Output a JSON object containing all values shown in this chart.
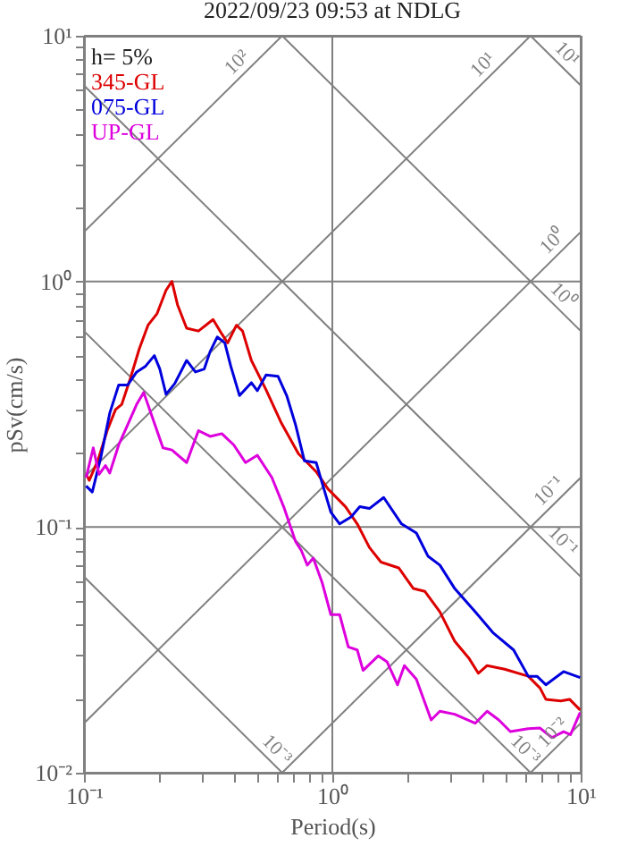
{
  "chart_data": {
    "type": "line",
    "title": "2022/09/23 09:53 at NDLG",
    "xlabel": "Period(s)",
    "ylabel": "pSv(cm/s)",
    "log": "xy",
    "grid": true,
    "legend": "top left",
    "marker": "none",
    "line_style": "solid",
    "xlim": [
      0.1,
      10
    ],
    "ylim": [
      0.01,
      10
    ],
    "xticks": [
      {
        "value": 0.1,
        "label": "10⁻¹"
      },
      {
        "value": 0.2,
        "label": null
      },
      {
        "value": 0.3,
        "label": null
      },
      {
        "value": 0.4,
        "label": null
      },
      {
        "value": 0.5,
        "label": null
      },
      {
        "value": 0.6,
        "label": null
      },
      {
        "value": 0.7,
        "label": null
      },
      {
        "value": 0.8,
        "label": null
      },
      {
        "value": 0.9,
        "label": null
      },
      {
        "value": 1,
        "label": "10⁰"
      },
      {
        "value": 2,
        "label": null
      },
      {
        "value": 3,
        "label": null
      },
      {
        "value": 4,
        "label": null
      },
      {
        "value": 5,
        "label": null
      },
      {
        "value": 6,
        "label": null
      },
      {
        "value": 7,
        "label": null
      },
      {
        "value": 8,
        "label": null
      },
      {
        "value": 9,
        "label": null
      },
      {
        "value": 10,
        "label": "10¹"
      }
    ],
    "yticks": [
      {
        "value": 0.01,
        "label": "10⁻²"
      },
      {
        "value": 0.02,
        "label": null
      },
      {
        "value": 0.03,
        "label": null
      },
      {
        "value": 0.04,
        "label": null
      },
      {
        "value": 0.05,
        "label": null
      },
      {
        "value": 0.06,
        "label": null
      },
      {
        "value": 0.07,
        "label": null
      },
      {
        "value": 0.08,
        "label": null
      },
      {
        "value": 0.09,
        "label": null
      },
      {
        "value": 0.1,
        "label": "10⁻¹"
      },
      {
        "value": 0.2,
        "label": null
      },
      {
        "value": 0.3,
        "label": null
      },
      {
        "value": 0.4,
        "label": null
      },
      {
        "value": 0.5,
        "label": null
      },
      {
        "value": 0.6,
        "label": null
      },
      {
        "value": 0.7,
        "label": null
      },
      {
        "value": 0.8,
        "label": null
      },
      {
        "value": 0.9,
        "label": null
      },
      {
        "value": 1,
        "label": "10⁰"
      },
      {
        "value": 2,
        "label": null
      },
      {
        "value": 3,
        "label": null
      },
      {
        "value": 4,
        "label": null
      },
      {
        "value": 5,
        "label": null
      },
      {
        "value": 6,
        "label": null
      },
      {
        "value": 7,
        "label": null
      },
      {
        "value": 8,
        "label": null
      },
      {
        "value": 9,
        "label": null
      },
      {
        "value": 10,
        "label": "10¹"
      }
    ],
    "annotations": [
      "h= 5%",
      {
        "text": "10²",
        "x": 0.45,
        "y": 7.16
      },
      {
        "text": "10¹",
        "x": 4.4,
        "y": 7.0
      },
      {
        "text": "10¹",
        "x": 8.1,
        "y": 7.75
      },
      {
        "text": "10⁰",
        "x": 8.4,
        "y": 1.34
      },
      {
        "text": "10⁰",
        "x": 7.8,
        "y": 0.805
      },
      {
        "text": "10⁻¹",
        "x": 8.1,
        "y": 0.129
      },
      {
        "text": "10⁻¹",
        "x": 7.8,
        "y": 0.0805
      },
      {
        "text": "10⁻³",
        "x": 0.55,
        "y": 0.0114
      },
      {
        "text": "10⁻³",
        "x": 5.5,
        "y": 0.0114
      },
      {
        "text": "10⁻²",
        "x": 8.4,
        "y": 0.0134
      }
    ],
    "series": [
      {
        "type": "line",
        "color": "#808080",
        "x": [
          0.1,
          0.628
        ],
        "values": [
          1.59,
          10
        ]
      },
      {
        "type": "line",
        "color": "#808080",
        "x": [
          0.1,
          6.28
        ],
        "values": [
          0.159,
          10
        ]
      },
      {
        "type": "line",
        "color": "#808080",
        "x": [
          0.1,
          10
        ],
        "values": [
          0.0159,
          1.59
        ]
      },
      {
        "type": "line",
        "color": "#808080",
        "x": [
          0.628,
          10
        ],
        "values": [
          0.01,
          0.159
        ]
      },
      {
        "type": "line",
        "color": "#808080",
        "x": [
          6.28,
          10
        ],
        "values": [
          0.01,
          0.0159
        ]
      },
      {
        "type": "line",
        "color": "#808080",
        "x": [
          0.1,
          10
        ],
        "values": [
          6.28,
          0.0628
        ]
      },
      {
        "type": "line",
        "color": "#808080",
        "x": [
          0.628,
          10
        ],
        "values": [
          10,
          0.628
        ]
      },
      {
        "type": "line",
        "color": "#808080",
        "x": [
          6.28,
          10
        ],
        "values": [
          10,
          6.28
        ]
      },
      {
        "type": "line",
        "color": "#808080",
        "x": [
          0.1,
          6.28
        ],
        "values": [
          0.628,
          0.01
        ]
      },
      {
        "type": "line",
        "color": "#808080",
        "x": [
          0.1,
          0.628
        ],
        "values": [
          0.0628,
          0.01
        ]
      },
      {
        "name": "345-GL",
        "color": "#dd0000",
        "x": [
          0.102,
          0.105,
          0.114,
          0.124,
          0.134,
          0.142,
          0.154,
          0.167,
          0.181,
          0.197,
          0.214,
          0.226,
          0.238,
          0.259,
          0.289,
          0.331,
          0.359,
          0.379,
          0.411,
          0.435,
          0.472,
          0.541,
          0.62,
          0.73,
          0.861,
          0.96,
          1.13,
          1.26,
          1.41,
          1.57,
          1.85,
          2.12,
          2.36,
          2.71,
          3.11,
          3.56,
          3.87,
          4.2,
          4.94,
          6.15,
          6.86,
          7.24,
          8.31,
          9.02,
          9.95
        ],
        "values": [
          0.164,
          0.155,
          0.188,
          0.247,
          0.301,
          0.316,
          0.405,
          0.532,
          0.663,
          0.74,
          0.921,
          1.0,
          0.804,
          0.645,
          0.628,
          0.7,
          0.611,
          0.562,
          0.663,
          0.628,
          0.477,
          0.362,
          0.268,
          0.199,
          0.168,
          0.143,
          0.121,
          0.103,
          0.0826,
          0.072,
          0.0682,
          0.0562,
          0.0547,
          0.0452,
          0.0343,
          0.0291,
          0.0254,
          0.0273,
          0.0264,
          0.0247,
          0.0221,
          0.0199,
          0.0196,
          0.0199,
          0.018
        ]
      },
      {
        "name": "075-GL",
        "color": "#0000dd",
        "x": [
          0.102,
          0.108,
          0.117,
          0.127,
          0.138,
          0.15,
          0.163,
          0.177,
          0.192,
          0.202,
          0.214,
          0.232,
          0.259,
          0.281,
          0.305,
          0.322,
          0.344,
          0.369,
          0.39,
          0.423,
          0.472,
          0.499,
          0.541,
          0.604,
          0.655,
          0.711,
          0.772,
          0.861,
          0.91,
          0.986,
          1.07,
          1.19,
          1.29,
          1.41,
          1.61,
          1.9,
          2.18,
          2.43,
          2.71,
          3.11,
          3.76,
          4.43,
          5.37,
          6.15,
          6.67,
          7.24,
          8.53,
          9.95
        ],
        "values": [
          0.147,
          0.139,
          0.193,
          0.291,
          0.379,
          0.379,
          0.428,
          0.452,
          0.499,
          0.44,
          0.347,
          0.384,
          0.477,
          0.428,
          0.44,
          0.518,
          0.594,
          0.562,
          0.452,
          0.343,
          0.387,
          0.359,
          0.416,
          0.411,
          0.343,
          0.261,
          0.186,
          0.183,
          0.151,
          0.115,
          0.103,
          0.11,
          0.121,
          0.119,
          0.132,
          0.103,
          0.0946,
          0.076,
          0.07,
          0.0562,
          0.0452,
          0.0372,
          0.0316,
          0.0247,
          0.0247,
          0.0228,
          0.0258,
          0.0244
        ]
      },
      {
        "name": "UP-GL",
        "color": "#dd00dd",
        "x": [
          0.102,
          0.109,
          0.115,
          0.122,
          0.127,
          0.138,
          0.15,
          0.163,
          0.174,
          0.186,
          0.208,
          0.226,
          0.259,
          0.289,
          0.322,
          0.359,
          0.401,
          0.447,
          0.499,
          0.571,
          0.637,
          0.711,
          0.75,
          0.793,
          0.838,
          0.91,
          0.986,
          1.07,
          1.16,
          1.26,
          1.33,
          1.53,
          1.66,
          1.83,
          1.95,
          2.18,
          2.5,
          2.71,
          3.11,
          3.76,
          4.2,
          4.68,
          5.21,
          6.15,
          6.86,
          7.66,
          8.53,
          9.1,
          9.95
        ],
        "values": [
          0.159,
          0.21,
          0.164,
          0.178,
          0.166,
          0.216,
          0.261,
          0.316,
          0.353,
          0.291,
          0.21,
          0.206,
          0.183,
          0.247,
          0.234,
          0.24,
          0.216,
          0.183,
          0.196,
          0.159,
          0.121,
          0.0873,
          0.0803,
          0.07,
          0.0748,
          0.0594,
          0.044,
          0.044,
          0.0325,
          0.0316,
          0.0261,
          0.0299,
          0.0283,
          0.0228,
          0.0273,
          0.024,
          0.0164,
          0.0178,
          0.0173,
          0.0159,
          0.0178,
          0.0164,
          0.0147,
          0.0151,
          0.0152,
          0.0139,
          0.0147,
          0.0143,
          0.0176
        ]
      }
    ]
  }
}
